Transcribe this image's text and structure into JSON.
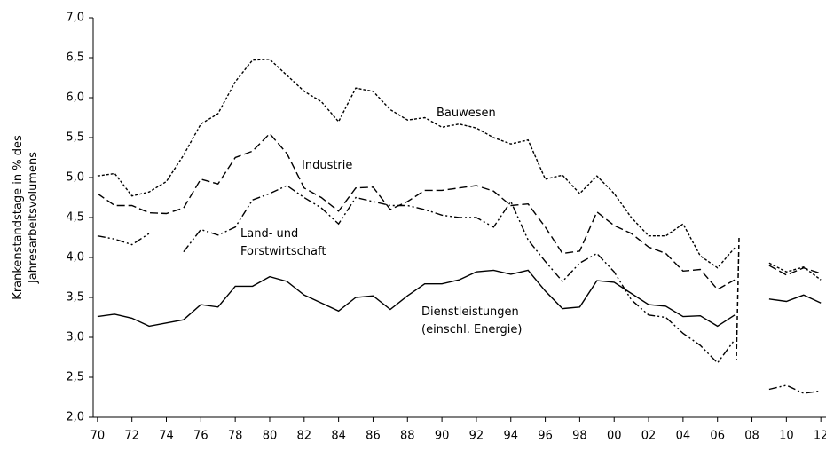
{
  "chart_data": {
    "type": "line",
    "y_label": [
      "Krankenstandstage in % des",
      "Jahresarbeitsvolumens"
    ],
    "annotations": [
      [
        "Bauwesen"
      ],
      [
        "Industrie"
      ],
      [
        "Land- und",
        "Forstwirtschaft"
      ],
      [
        "Dienstleistungen",
        "(einschl. Energie)"
      ]
    ],
    "x": [
      1970,
      1971,
      1972,
      1973,
      1974,
      1975,
      1976,
      1977,
      1978,
      1979,
      1980,
      1981,
      1982,
      1983,
      1984,
      1985,
      1986,
      1987,
      1988,
      1989,
      1990,
      1991,
      1992,
      1993,
      1994,
      1995,
      1996,
      1997,
      1998,
      1999,
      2000,
      2001,
      2002,
      2003,
      2004,
      2005,
      2006,
      2007,
      2008,
      2009,
      2010,
      2011,
      2012
    ],
    "series": [
      {
        "color": "#000000",
        "style": "dotted",
        "values": [
          5.02,
          5.05,
          4.77,
          4.82,
          4.95,
          5.28,
          5.67,
          5.8,
          6.2,
          6.47,
          6.48,
          6.28,
          6.08,
          5.95,
          5.7,
          6.12,
          6.08,
          5.85,
          5.72,
          5.75,
          5.63,
          5.67,
          5.62,
          5.5,
          5.42,
          5.47,
          4.98,
          5.03,
          4.8,
          5.02,
          4.8,
          4.5,
          4.27,
          4.27,
          4.42,
          4.02,
          3.87,
          4.12,
          null,
          3.93,
          3.82,
          3.88,
          3.72
        ]
      },
      {
        "color": "#000000",
        "style": "dashed",
        "values": [
          4.8,
          4.65,
          4.65,
          4.56,
          4.55,
          4.62,
          4.98,
          4.92,
          5.25,
          5.33,
          5.55,
          5.3,
          4.87,
          4.75,
          4.58,
          4.87,
          4.88,
          4.6,
          4.7,
          4.84,
          4.84,
          4.87,
          4.9,
          4.83,
          4.65,
          4.67,
          4.38,
          4.05,
          4.08,
          4.57,
          4.4,
          4.3,
          4.13,
          4.05,
          3.83,
          3.85,
          3.6,
          3.72,
          null,
          3.9,
          3.78,
          3.87,
          3.8
        ]
      },
      {
        "color": "#000000",
        "style": "dashdotdot",
        "values": [
          4.27,
          4.23,
          4.16,
          4.3,
          null,
          4.07,
          4.35,
          4.28,
          4.38,
          4.72,
          4.8,
          4.9,
          4.75,
          4.62,
          4.42,
          4.75,
          4.7,
          4.65,
          4.65,
          4.6,
          4.53,
          4.5,
          4.5,
          4.38,
          4.7,
          4.22,
          3.95,
          3.7,
          3.93,
          4.05,
          3.82,
          3.47,
          3.28,
          3.25,
          3.05,
          2.9,
          2.68,
          2.97,
          null,
          2.35,
          2.4,
          2.3,
          2.33
        ]
      },
      {
        "color": "#000000",
        "style": "solid",
        "values": [
          3.26,
          3.29,
          3.24,
          3.14,
          3.18,
          3.22,
          3.41,
          3.38,
          3.64,
          3.64,
          3.76,
          3.7,
          3.53,
          3.43,
          3.33,
          3.5,
          3.52,
          3.35,
          3.52,
          3.67,
          3.67,
          3.72,
          3.82,
          3.84,
          3.79,
          3.84,
          3.58,
          3.36,
          3.38,
          3.71,
          3.69,
          3.55,
          3.41,
          3.39,
          3.26,
          3.27,
          3.14,
          3.28,
          null,
          3.48,
          3.45,
          3.53,
          3.43
        ]
      }
    ],
    "xlim": [
      1969.75,
      2012.3
    ],
    "ylim": [
      2,
      7
    ],
    "xticks": [
      {
        "value": 1970,
        "label": "70"
      },
      {
        "value": 1972,
        "label": "72"
      },
      {
        "value": 1974,
        "label": "74"
      },
      {
        "value": 1976,
        "label": "76"
      },
      {
        "value": 1978,
        "label": "78"
      },
      {
        "value": 1980,
        "label": "80"
      },
      {
        "value": 1982,
        "label": "82"
      },
      {
        "value": 1984,
        "label": "84"
      },
      {
        "value": 1986,
        "label": "86"
      },
      {
        "value": 1988,
        "label": "88"
      },
      {
        "value": 1990,
        "label": "90"
      },
      {
        "value": 1992,
        "label": "92"
      },
      {
        "value": 1994,
        "label": "94"
      },
      {
        "value": 1996,
        "label": "96"
      },
      {
        "value": 1998,
        "label": "98"
      },
      {
        "value": 2000,
        "label": "00"
      },
      {
        "value": 2002,
        "label": "02"
      },
      {
        "value": 2004,
        "label": "04"
      },
      {
        "value": 2006,
        "label": "06"
      },
      {
        "value": 2008,
        "label": "08"
      },
      {
        "value": 2010,
        "label": "10"
      },
      {
        "value": 2012,
        "label": "12"
      }
    ],
    "yticks": [
      {
        "value": 2,
        "label": "2,0"
      },
      {
        "value": 2.5,
        "label": "2,5"
      },
      {
        "value": 3,
        "label": "3,0"
      },
      {
        "value": 3.5,
        "label": "3,5"
      },
      {
        "value": 4,
        "label": "4,0"
      },
      {
        "value": 4.5,
        "label": "4,5"
      },
      {
        "value": 5,
        "label": "5,0"
      },
      {
        "value": 5.5,
        "label": "5,5"
      },
      {
        "value": 6,
        "label": "6,0"
      },
      {
        "value": 6.5,
        "label": "6,5"
      },
      {
        "value": 7,
        "label": "7,0"
      }
    ],
    "grid": false
  }
}
